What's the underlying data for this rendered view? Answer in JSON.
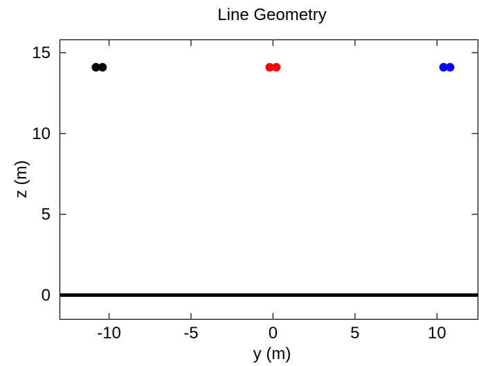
{
  "chart_data": {
    "type": "scatter",
    "title": "Line Geometry",
    "xlabel": "y (m)",
    "ylabel": "z (m)",
    "xlim": [
      -13,
      12.5
    ],
    "ylim": [
      -1.5,
      15.8
    ],
    "xticks": [
      -10,
      -5,
      0,
      5,
      10
    ],
    "yticks": [
      0,
      5,
      10,
      15
    ],
    "grid": false,
    "series": [
      {
        "color": "#000000",
        "points": [
          {
            "x": -10.8,
            "y": 14.1
          },
          {
            "x": -10.4,
            "y": 14.1
          }
        ]
      },
      {
        "color": "#ff0000",
        "points": [
          {
            "x": -0.2,
            "y": 14.1
          },
          {
            "x": 0.2,
            "y": 14.1
          }
        ]
      },
      {
        "color": "#0000ff",
        "points": [
          {
            "x": 10.4,
            "y": 14.1
          },
          {
            "x": 10.8,
            "y": 14.1
          }
        ]
      }
    ],
    "reference_line": {
      "color": "#000000",
      "y": 0
    }
  }
}
